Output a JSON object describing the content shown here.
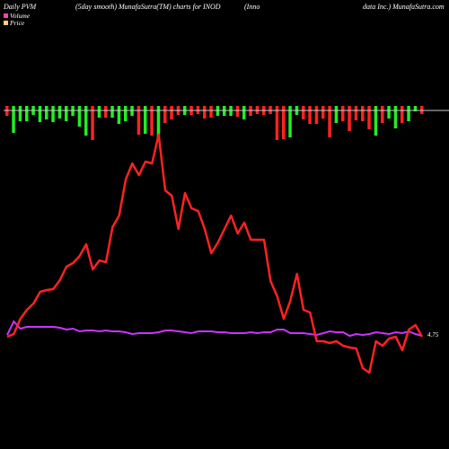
{
  "header": {
    "col1": "Daily PVM",
    "col2": "(5day smooth) MunafaSutra(TM) charts for INOD",
    "col3": "(Inno",
    "col4": "data  Inc.) MunafaSutra.com"
  },
  "legend": {
    "volume_label": "Volume",
    "price_label": "Price",
    "volume_color": "#ff44aa",
    "price_color": "#ffd27a"
  },
  "chart_data": {
    "type": "line",
    "price_color": "#ff2222",
    "smooth_color": "#cc33ff",
    "baseline_color": "#cccccc",
    "up_color": "#22ee22",
    "down_color": "#ff2222",
    "smooth_value_label": "4.75",
    "price": [
      375,
      372,
      355,
      345,
      338,
      325,
      323,
      322,
      312,
      297,
      293,
      285,
      272,
      300,
      290,
      292,
      253,
      240,
      200,
      182,
      195,
      180,
      182,
      150,
      212,
      218,
      255,
      215,
      232,
      235,
      255,
      282,
      270,
      255,
      240,
      260,
      248,
      267,
      267,
      267,
      313,
      330,
      355,
      335,
      305,
      345,
      348,
      380,
      380,
      382,
      380,
      385,
      387,
      388,
      410,
      415,
      380,
      385,
      377,
      375,
      390,
      367,
      362,
      375
    ],
    "smooth": [
      373,
      358,
      366,
      364,
      364,
      364,
      364,
      364,
      365,
      367,
      366,
      369,
      368,
      368,
      369,
      368,
      369,
      369,
      370,
      372,
      371,
      371,
      371,
      370,
      368,
      368,
      369,
      370,
      371,
      369,
      369,
      369,
      370,
      370,
      371,
      371,
      371,
      370,
      371,
      370,
      370,
      367,
      367,
      371,
      371,
      371,
      372,
      373,
      371,
      369,
      370,
      370,
      374,
      372,
      373,
      372,
      370,
      371,
      372,
      370,
      371,
      369,
      372,
      374
    ],
    "volume": [
      -6,
      -25,
      -12,
      -12,
      -5,
      -13,
      -10,
      -13,
      -9,
      -12,
      -6,
      -18,
      -28,
      -33,
      -8,
      -8,
      -8,
      -15,
      -12,
      -6,
      -27,
      -26,
      -28,
      -32,
      -14,
      -10,
      -5,
      -5,
      -5,
      -4,
      -9,
      -8,
      -6,
      -6,
      -6,
      -7,
      -10,
      -6,
      -4,
      -5,
      -4,
      -33,
      -32,
      -30,
      -5,
      -10,
      -15,
      -15,
      -9,
      -30,
      -14,
      -12,
      -23,
      -11,
      -12,
      -21,
      -28,
      -14,
      -9,
      -20,
      -14,
      -12,
      -1,
      -4
    ]
  }
}
